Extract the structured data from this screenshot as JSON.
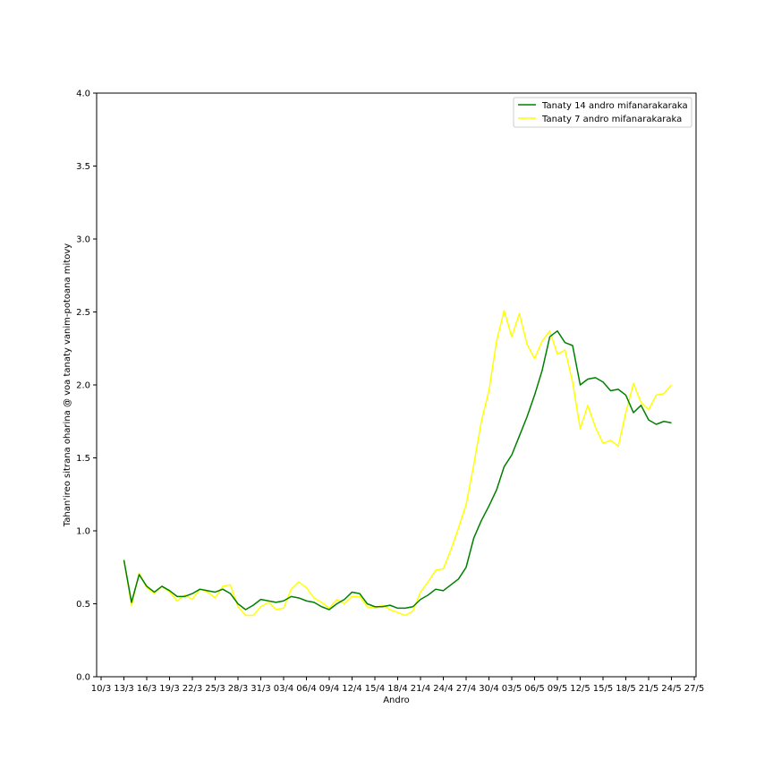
{
  "chart_data": {
    "type": "line",
    "title": "",
    "xlabel": "Andro",
    "ylabel": "Tahan'ireo sitrana oharina @ voa tanaty vanim-potoana mitovy",
    "ylim": [
      0,
      4.0
    ],
    "yticks": [
      "0.0",
      "0.5",
      "1.0",
      "1.5",
      "2.0",
      "2.5",
      "3.0",
      "3.5",
      "4.0"
    ],
    "xticks": [
      "10/3",
      "13/3",
      "16/3",
      "19/3",
      "22/3",
      "25/3",
      "28/3",
      "31/3",
      "03/4",
      "06/4",
      "09/4",
      "12/4",
      "15/4",
      "18/4",
      "21/4",
      "24/4",
      "27/4",
      "30/4",
      "03/5",
      "06/5",
      "09/5",
      "12/5",
      "15/5",
      "18/5",
      "21/5",
      "24/5",
      "27/5"
    ],
    "x_start": "13/3",
    "x_end": "24/5",
    "grid": false,
    "legend_position": "top-right",
    "series": [
      {
        "name": "Tanaty 14 andro mifanarakaraka",
        "color": "#008000",
        "values": [
          0.8,
          0.51,
          0.7,
          0.62,
          0.58,
          0.62,
          0.59,
          0.55,
          0.55,
          0.57,
          0.6,
          0.59,
          0.58,
          0.6,
          0.57,
          0.5,
          0.46,
          0.49,
          0.53,
          0.52,
          0.51,
          0.52,
          0.55,
          0.54,
          0.52,
          0.51,
          0.48,
          0.46,
          0.5,
          0.53,
          0.58,
          0.57,
          0.5,
          0.48,
          0.48,
          0.49,
          0.47,
          0.47,
          0.48,
          0.53,
          0.56,
          0.6,
          0.59,
          0.63,
          0.67,
          0.75,
          0.95,
          1.07,
          1.17,
          1.28,
          1.44,
          1.52,
          1.65,
          1.78,
          1.93,
          2.1,
          2.33,
          2.37,
          2.29,
          2.27,
          2.0,
          2.04,
          2.05,
          2.02,
          1.96,
          1.97,
          1.93,
          1.81,
          1.86,
          1.76,
          1.73,
          1.75,
          1.74
        ]
      },
      {
        "name": "Tanaty 7 andro mifanarakaraka",
        "color": "#ffff00",
        "values": [
          0.8,
          0.49,
          0.71,
          0.61,
          0.57,
          0.62,
          0.58,
          0.52,
          0.56,
          0.53,
          0.6,
          0.58,
          0.54,
          0.62,
          0.63,
          0.48,
          0.42,
          0.42,
          0.48,
          0.51,
          0.46,
          0.47,
          0.6,
          0.65,
          0.61,
          0.54,
          0.51,
          0.47,
          0.53,
          0.5,
          0.55,
          0.55,
          0.48,
          0.47,
          0.49,
          0.46,
          0.44,
          0.42,
          0.45,
          0.58,
          0.65,
          0.73,
          0.74,
          0.87,
          1.02,
          1.18,
          1.45,
          1.75,
          1.96,
          2.3,
          2.51,
          2.33,
          2.49,
          2.28,
          2.18,
          2.3,
          2.37,
          2.21,
          2.24,
          2.02,
          1.7,
          1.86,
          1.71,
          1.6,
          1.62,
          1.58,
          1.81,
          2.01,
          1.88,
          1.83,
          1.93,
          1.94,
          2.0
        ]
      }
    ]
  }
}
